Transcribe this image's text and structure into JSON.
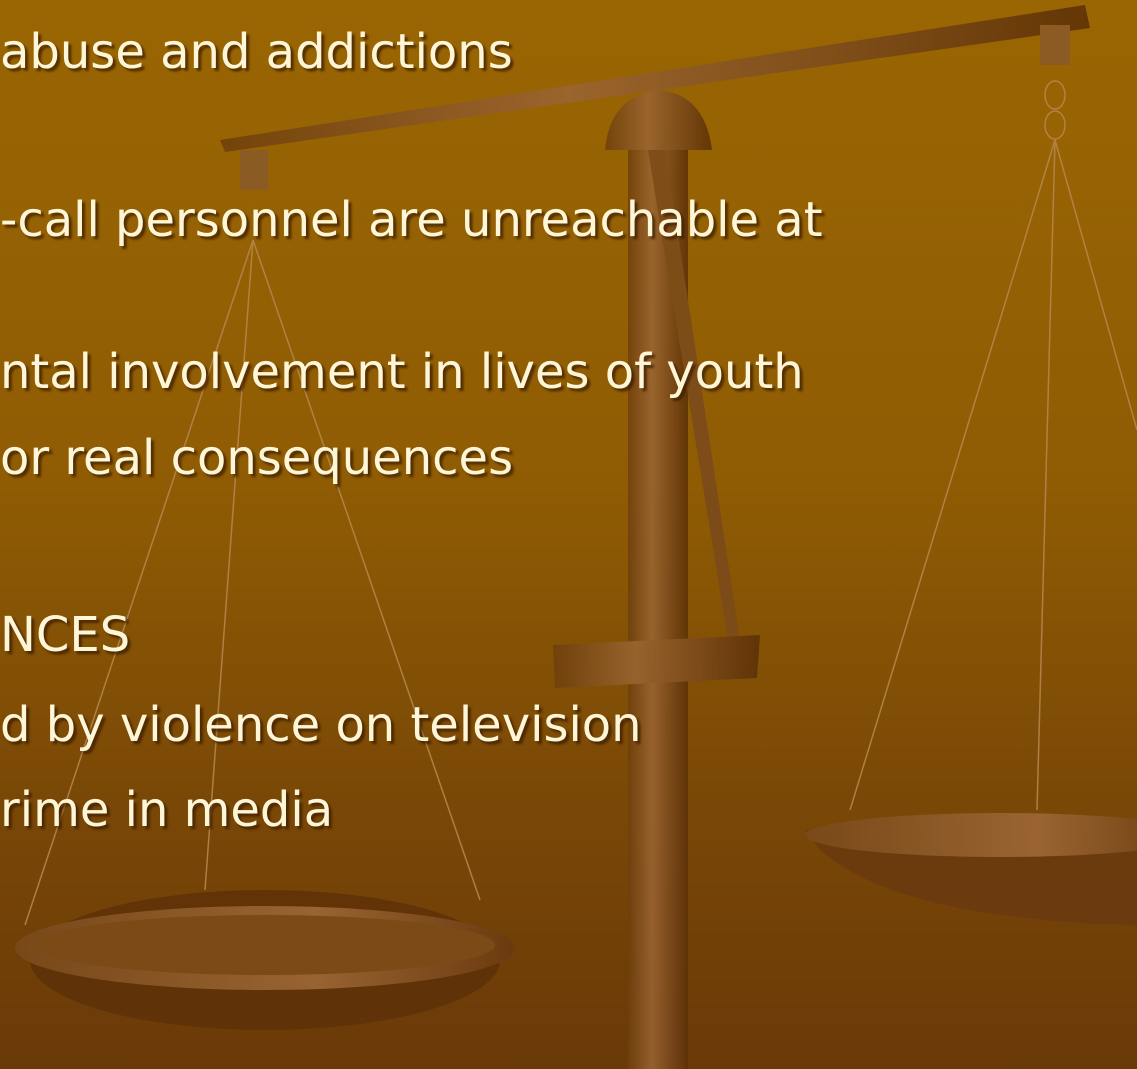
{
  "lines": [
    "abuse and addictions",
    "-call personnel are unreachable at",
    "ntal involvement in lives of youth",
    "or real consequences",
    "NCES",
    "d by violence on television",
    "rime in media"
  ]
}
